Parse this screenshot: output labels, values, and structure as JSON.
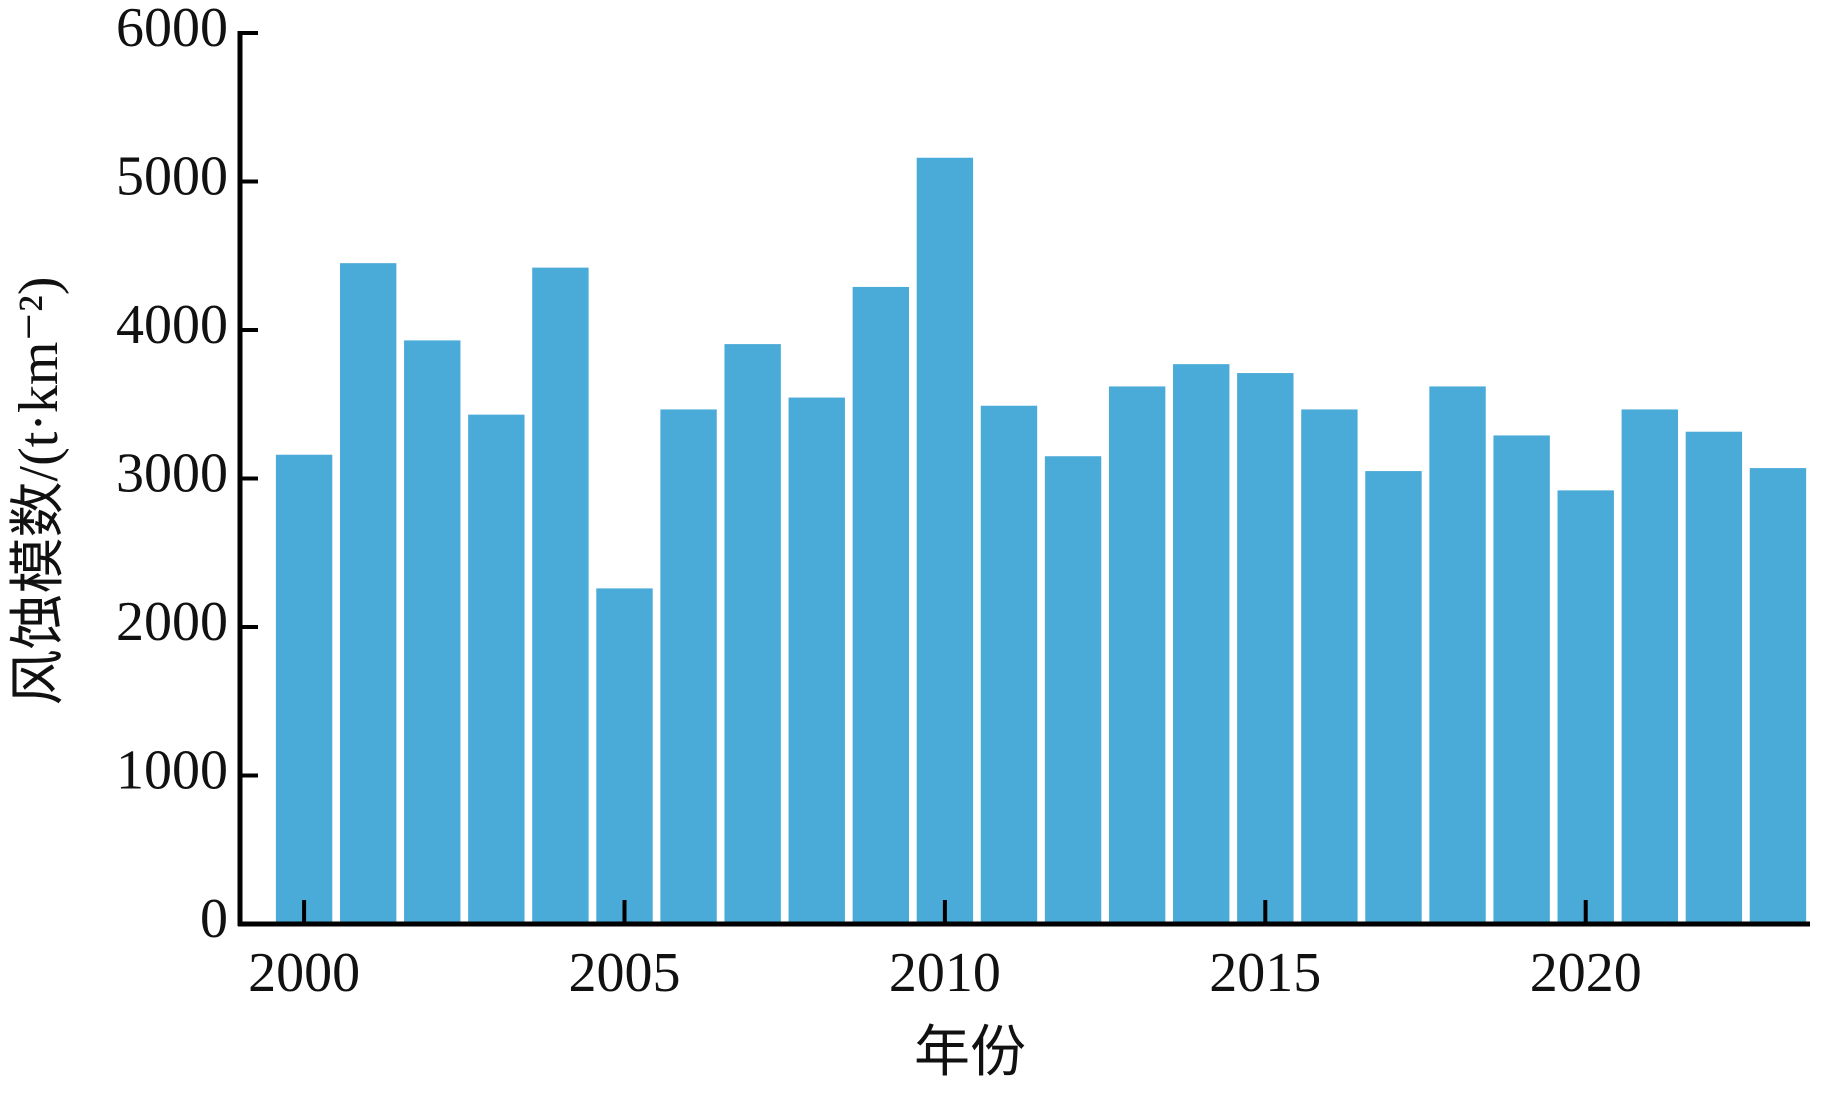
{
  "chart_data": {
    "type": "bar",
    "xlabel": "年份",
    "ylabel": "风蚀模数/(t·km⁻²)",
    "x": [
      2000,
      2001,
      2002,
      2003,
      2004,
      2005,
      2006,
      2007,
      2008,
      2009,
      2010,
      2011,
      2012,
      2013,
      2014,
      2015,
      2016,
      2017,
      2018,
      2019,
      2020,
      2021,
      2022,
      2023
    ],
    "values": [
      3160,
      4450,
      3930,
      3430,
      4420,
      2260,
      3465,
      3905,
      3545,
      4290,
      5160,
      3490,
      3150,
      3620,
      3770,
      3710,
      3465,
      3050,
      3620,
      3290,
      2920,
      3465,
      3315,
      3070
    ],
    "color": "#4aaad8",
    "xlim": [
      1999,
      2023.5
    ],
    "xticks": [
      2000,
      2005,
      2010,
      2015,
      2020
    ],
    "ylim": [
      0,
      6000
    ],
    "yticks": [
      0,
      1000,
      2000,
      3000,
      4000,
      5000,
      6000
    ],
    "grid": false
  }
}
